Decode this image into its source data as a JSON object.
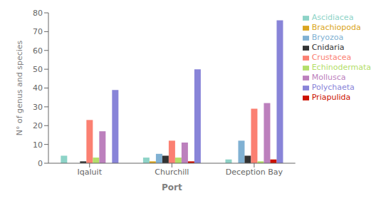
{
  "chart_data": {
    "type": "bar",
    "xlabel": "Port",
    "ylabel": "N° of genus and species",
    "categories": [
      "Iqaluit",
      "Churchill",
      "Deception Bay"
    ],
    "series": [
      {
        "name": "Ascidiacea",
        "color": "#8dd3c7",
        "values": [
          4,
          3,
          2
        ]
      },
      {
        "name": "Brachiopoda",
        "color": "#DAA520",
        "values": [
          0,
          1,
          0
        ]
      },
      {
        "name": "Bryozoa",
        "color": "#80b1d3",
        "values": [
          0,
          5,
          12
        ]
      },
      {
        "name": "Cnidaria",
        "color": "#333333",
        "values": [
          1,
          4,
          4
        ]
      },
      {
        "name": "Crustacea",
        "color": "#fb8072",
        "values": [
          23,
          12,
          29
        ]
      },
      {
        "name": "Echinodermata",
        "color": "#b3de69",
        "values": [
          3,
          3,
          1
        ]
      },
      {
        "name": "Mollusca",
        "color": "#bc80bd",
        "values": [
          17,
          11,
          32
        ]
      },
      {
        "name": "Priapulida",
        "color": "#cc1100",
        "values": [
          0,
          1,
          2
        ]
      },
      {
        "name": "Polychaeta",
        "color": "#8884d8",
        "values": [
          39,
          50,
          76
        ]
      }
    ],
    "ylim": [
      0,
      80
    ],
    "yticks": [
      0,
      10,
      20,
      30,
      40,
      50,
      60,
      70,
      80
    ],
    "grid": false,
    "legend": "right"
  }
}
